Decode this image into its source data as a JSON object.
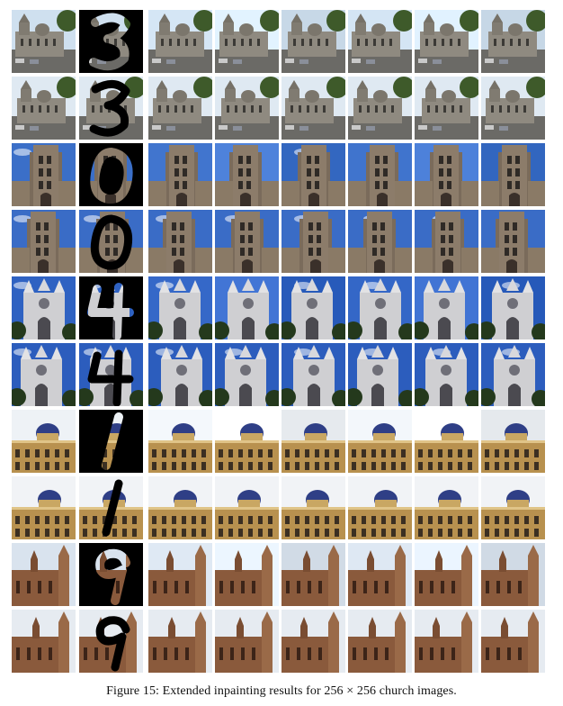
{
  "caption": "Figure 15: Extended inpainting results for 256 × 256 church images.",
  "grid": {
    "columns": 8,
    "column_roles": [
      "original",
      "masked-input",
      "sample-1",
      "sample-2",
      "sample-3",
      "sample-4",
      "sample-5",
      "sample-6"
    ],
    "rows": [
      {
        "glyph": "3",
        "scene": "gothic-church-grey",
        "pair": "random-samples",
        "sky": "#cfe0ef"
      },
      {
        "glyph": "3",
        "scene": "gothic-church-grey",
        "pair": "reconstructions",
        "sky": "#dfe9f2"
      },
      {
        "glyph": "0",
        "scene": "stone-tower",
        "pair": "random-samples",
        "sky": "#3b6fc8"
      },
      {
        "glyph": "0",
        "scene": "stone-tower",
        "pair": "reconstructions",
        "sky": "#3a6cc6"
      },
      {
        "glyph": "4",
        "scene": "white-cathedral",
        "pair": "random-samples",
        "sky": "#2f62c2"
      },
      {
        "glyph": "4",
        "scene": "white-cathedral",
        "pair": "reconstructions",
        "sky": "#2c5dbd"
      },
      {
        "glyph": "1",
        "scene": "domed-building",
        "pair": "random-samples",
        "sky": "#eef2f6"
      },
      {
        "glyph": "1",
        "scene": "domed-building",
        "pair": "reconstructions",
        "sky": "#f1f3f6"
      },
      {
        "glyph": "9",
        "scene": "brown-gothic-church",
        "pair": "random-samples",
        "sky": "#d9e3ee"
      },
      {
        "glyph": "9",
        "scene": "brown-gothic-church",
        "pair": "reconstructions",
        "sky": "#e6ebf1"
      }
    ]
  },
  "palette": {
    "background": "#ffffff",
    "mask_fill": "#000000",
    "stone_grey": "#8f8a80",
    "stone_brown": "#8a5a3c",
    "stone_tan": "#b8914f",
    "stone_white": "#cfcfd2",
    "dome_blue": "#2f3f86",
    "tree_green": "#3e5a2a"
  }
}
